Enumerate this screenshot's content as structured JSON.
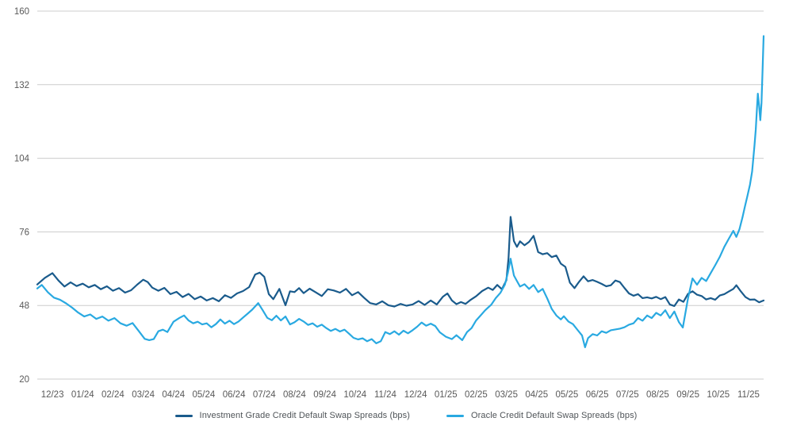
{
  "chart_data": {
    "type": "line",
    "title": "",
    "xlabel": "",
    "ylabel": "",
    "ylim": [
      20,
      160
    ],
    "grid": "horizontal",
    "legend_position": "bottom-center",
    "colors": {
      "grid": "#cccccc",
      "tick_text": "#595959",
      "ig_line": "#1a5b8c",
      "oracle_line": "#29a9e1"
    },
    "y_ticks": [
      160,
      132,
      104,
      76,
      48,
      20
    ],
    "x_tick_labels": [
      "12/23",
      "01/24",
      "02/24",
      "03/24",
      "04/24",
      "05/24",
      "06/24",
      "07/24",
      "08/24",
      "09/24",
      "10/24",
      "11/24",
      "12/24",
      "01/25",
      "02/25",
      "03/25",
      "04/25",
      "05/25",
      "06/25",
      "07/25",
      "08/25",
      "09/25",
      "10/25",
      "11/25"
    ],
    "x_unit": "month_index_from_dec_2023",
    "series": [
      {
        "name": "Investment Grade Credit Default Swap Spreads (bps)",
        "color": "#1a5b8c",
        "points": [
          [
            0,
            56
          ],
          [
            0.25,
            58.5
          ],
          [
            0.5,
            60.3
          ],
          [
            0.7,
            57.5
          ],
          [
            0.9,
            55.2
          ],
          [
            1.1,
            56.8
          ],
          [
            1.3,
            55.4
          ],
          [
            1.5,
            56.3
          ],
          [
            1.7,
            54.9
          ],
          [
            1.9,
            55.8
          ],
          [
            2.1,
            54.2
          ],
          [
            2.3,
            55.3
          ],
          [
            2.5,
            53.6
          ],
          [
            2.7,
            54.6
          ],
          [
            2.9,
            52.9
          ],
          [
            3.1,
            53.8
          ],
          [
            3.3,
            55.9
          ],
          [
            3.5,
            57.8
          ],
          [
            3.65,
            56.9
          ],
          [
            3.8,
            54.8
          ],
          [
            4.0,
            53.6
          ],
          [
            4.2,
            54.7
          ],
          [
            4.4,
            52.3
          ],
          [
            4.6,
            53.2
          ],
          [
            4.8,
            51.2
          ],
          [
            5.0,
            52.4
          ],
          [
            5.2,
            50.4
          ],
          [
            5.4,
            51.4
          ],
          [
            5.6,
            49.9
          ],
          [
            5.8,
            50.8
          ],
          [
            6.0,
            49.6
          ],
          [
            6.2,
            51.9
          ],
          [
            6.4,
            50.9
          ],
          [
            6.6,
            52.6
          ],
          [
            6.8,
            53.5
          ],
          [
            7.0,
            55
          ],
          [
            7.2,
            59.8
          ],
          [
            7.35,
            60.5
          ],
          [
            7.5,
            58.9
          ],
          [
            7.65,
            52.3
          ],
          [
            7.8,
            50.4
          ],
          [
            8.0,
            54.3
          ],
          [
            8.2,
            48.1
          ],
          [
            8.35,
            53.4
          ],
          [
            8.5,
            53.1
          ],
          [
            8.65,
            54.6
          ],
          [
            8.8,
            52.7
          ],
          [
            9.0,
            54.4
          ],
          [
            9.2,
            53
          ],
          [
            9.4,
            51.6
          ],
          [
            9.6,
            54.2
          ],
          [
            9.8,
            53.7
          ],
          [
            10.0,
            52.9
          ],
          [
            10.2,
            54.3
          ],
          [
            10.4,
            51.9
          ],
          [
            10.6,
            53.1
          ],
          [
            10.8,
            50.9
          ],
          [
            11.0,
            48.9
          ],
          [
            11.2,
            48.4
          ],
          [
            11.4,
            49.6
          ],
          [
            11.6,
            48.1
          ],
          [
            11.8,
            47.6
          ],
          [
            12.0,
            48.6
          ],
          [
            12.2,
            47.9
          ],
          [
            12.4,
            48.4
          ],
          [
            12.6,
            49.7
          ],
          [
            12.8,
            48.2
          ],
          [
            13.0,
            49.9
          ],
          [
            13.2,
            48.4
          ],
          [
            13.4,
            51.3
          ],
          [
            13.55,
            52.6
          ],
          [
            13.7,
            49.9
          ],
          [
            13.85,
            48.5
          ],
          [
            14.0,
            49.3
          ],
          [
            14.15,
            48.6
          ],
          [
            14.3,
            50
          ],
          [
            14.5,
            51.5
          ],
          [
            14.7,
            53.5
          ],
          [
            14.9,
            54.8
          ],
          [
            15.05,
            53.9
          ],
          [
            15.2,
            55.8
          ],
          [
            15.35,
            54.2
          ],
          [
            15.5,
            57.6
          ],
          [
            15.57,
            66
          ],
          [
            15.64,
            81.7
          ],
          [
            15.75,
            72.5
          ],
          [
            15.85,
            70.3
          ],
          [
            15.95,
            72.4
          ],
          [
            16.1,
            70.9
          ],
          [
            16.25,
            72.2
          ],
          [
            16.4,
            74.5
          ],
          [
            16.55,
            68.3
          ],
          [
            16.7,
            67.5
          ],
          [
            16.85,
            67.9
          ],
          [
            17.0,
            66.4
          ],
          [
            17.15,
            67
          ],
          [
            17.3,
            63.9
          ],
          [
            17.45,
            62.7
          ],
          [
            17.6,
            56.7
          ],
          [
            17.75,
            54.6
          ],
          [
            17.9,
            57
          ],
          [
            18.05,
            59.1
          ],
          [
            18.2,
            57.2
          ],
          [
            18.35,
            57.7
          ],
          [
            18.5,
            57
          ],
          [
            18.65,
            56.2
          ],
          [
            18.8,
            55.3
          ],
          [
            18.95,
            55.7
          ],
          [
            19.1,
            57.5
          ],
          [
            19.25,
            56.9
          ],
          [
            19.4,
            54.7
          ],
          [
            19.55,
            52.6
          ],
          [
            19.7,
            51.7
          ],
          [
            19.85,
            52.3
          ],
          [
            20.0,
            50.8
          ],
          [
            20.15,
            51.1
          ],
          [
            20.3,
            50.7
          ],
          [
            20.45,
            51.3
          ],
          [
            20.6,
            50.4
          ],
          [
            20.75,
            51.2
          ],
          [
            20.9,
            48.4
          ],
          [
            21.05,
            47.8
          ],
          [
            21.2,
            50.3
          ],
          [
            21.35,
            49.4
          ],
          [
            21.5,
            52.4
          ],
          [
            21.65,
            53.4
          ],
          [
            21.8,
            52.1
          ],
          [
            21.95,
            51.6
          ],
          [
            22.1,
            50.3
          ],
          [
            22.25,
            50.8
          ],
          [
            22.4,
            50.2
          ],
          [
            22.55,
            51.8
          ],
          [
            22.7,
            52.3
          ],
          [
            22.85,
            53.3
          ],
          [
            23.0,
            54.3
          ],
          [
            23.1,
            55.7
          ],
          [
            23.25,
            53.3
          ],
          [
            23.4,
            51.2
          ],
          [
            23.55,
            50.2
          ],
          [
            23.7,
            50.3
          ],
          [
            23.85,
            49.2
          ],
          [
            24,
            49.9
          ]
        ]
      },
      {
        "name": "Oracle Credit Default Swap Spreads (bps)",
        "color": "#29a9e1",
        "points": [
          [
            0,
            54.5
          ],
          [
            0.15,
            55.8
          ],
          [
            0.35,
            53
          ],
          [
            0.55,
            51
          ],
          [
            0.75,
            50.2
          ],
          [
            0.95,
            48.8
          ],
          [
            1.15,
            47.2
          ],
          [
            1.35,
            45.3
          ],
          [
            1.55,
            43.8
          ],
          [
            1.75,
            44.6
          ],
          [
            1.95,
            42.9
          ],
          [
            2.15,
            43.8
          ],
          [
            2.35,
            42.2
          ],
          [
            2.55,
            43.2
          ],
          [
            2.75,
            41.2
          ],
          [
            2.95,
            40.3
          ],
          [
            3.15,
            41.3
          ],
          [
            3.35,
            38.3
          ],
          [
            3.55,
            35.3
          ],
          [
            3.7,
            34.8
          ],
          [
            3.85,
            35.2
          ],
          [
            4.0,
            38.2
          ],
          [
            4.15,
            38.8
          ],
          [
            4.3,
            37.9
          ],
          [
            4.5,
            41.8
          ],
          [
            4.7,
            43.3
          ],
          [
            4.85,
            44.2
          ],
          [
            5.0,
            42.3
          ],
          [
            5.15,
            41.2
          ],
          [
            5.3,
            41.8
          ],
          [
            5.45,
            40.8
          ],
          [
            5.6,
            41.2
          ],
          [
            5.75,
            39.7
          ],
          [
            5.9,
            40.9
          ],
          [
            6.05,
            42.7
          ],
          [
            6.2,
            41.1
          ],
          [
            6.35,
            42.2
          ],
          [
            6.5,
            40.9
          ],
          [
            6.65,
            41.9
          ],
          [
            6.8,
            43.4
          ],
          [
            6.95,
            44.9
          ],
          [
            7.1,
            46.4
          ],
          [
            7.3,
            48.9
          ],
          [
            7.45,
            46.2
          ],
          [
            7.6,
            43.3
          ],
          [
            7.75,
            42.4
          ],
          [
            7.9,
            44.1
          ],
          [
            8.05,
            42.3
          ],
          [
            8.2,
            43.8
          ],
          [
            8.35,
            40.8
          ],
          [
            8.5,
            41.6
          ],
          [
            8.65,
            42.9
          ],
          [
            8.8,
            41.9
          ],
          [
            8.95,
            40.6
          ],
          [
            9.1,
            41.2
          ],
          [
            9.25,
            39.9
          ],
          [
            9.4,
            40.7
          ],
          [
            9.55,
            39.4
          ],
          [
            9.7,
            38.3
          ],
          [
            9.85,
            39.1
          ],
          [
            10.0,
            38.1
          ],
          [
            10.15,
            38.8
          ],
          [
            10.3,
            37.3
          ],
          [
            10.45,
            35.7
          ],
          [
            10.6,
            35.1
          ],
          [
            10.75,
            35.5
          ],
          [
            10.9,
            34.4
          ],
          [
            11.05,
            35.2
          ],
          [
            11.2,
            33.6
          ],
          [
            11.35,
            34.4
          ],
          [
            11.5,
            37.9
          ],
          [
            11.65,
            37.1
          ],
          [
            11.8,
            38.2
          ],
          [
            11.95,
            36.9
          ],
          [
            12.1,
            38.4
          ],
          [
            12.25,
            37.4
          ],
          [
            12.4,
            38.6
          ],
          [
            12.55,
            39.9
          ],
          [
            12.7,
            41.5
          ],
          [
            12.85,
            40.3
          ],
          [
            13.0,
            41.1
          ],
          [
            13.15,
            40.2
          ],
          [
            13.3,
            37.8
          ],
          [
            13.5,
            36.1
          ],
          [
            13.7,
            35.2
          ],
          [
            13.85,
            36.7
          ],
          [
            14.04,
            34.8
          ],
          [
            14.2,
            37.9
          ],
          [
            14.35,
            39.4
          ],
          [
            14.5,
            42.3
          ],
          [
            14.65,
            44.2
          ],
          [
            14.8,
            46.2
          ],
          [
            15.0,
            48.3
          ],
          [
            15.15,
            50.8
          ],
          [
            15.3,
            52.8
          ],
          [
            15.45,
            55.9
          ],
          [
            15.55,
            60.5
          ],
          [
            15.64,
            65.8
          ],
          [
            15.75,
            59.4
          ],
          [
            15.85,
            57.3
          ],
          [
            15.95,
            55.2
          ],
          [
            16.1,
            56.1
          ],
          [
            16.25,
            54.3
          ],
          [
            16.4,
            55.8
          ],
          [
            16.55,
            53.1
          ],
          [
            16.7,
            54.3
          ],
          [
            16.85,
            50.7
          ],
          [
            17.0,
            46.7
          ],
          [
            17.15,
            44.2
          ],
          [
            17.3,
            42.7
          ],
          [
            17.4,
            43.9
          ],
          [
            17.55,
            41.9
          ],
          [
            17.7,
            40.9
          ],
          [
            17.85,
            38.7
          ],
          [
            18.0,
            36.6
          ],
          [
            18.1,
            32.1
          ],
          [
            18.2,
            35.6
          ],
          [
            18.35,
            37.1
          ],
          [
            18.5,
            36.6
          ],
          [
            18.65,
            38.2
          ],
          [
            18.8,
            37.6
          ],
          [
            18.95,
            38.6
          ],
          [
            19.1,
            38.9
          ],
          [
            19.25,
            39.2
          ],
          [
            19.4,
            39.7
          ],
          [
            19.55,
            40.7
          ],
          [
            19.7,
            41.2
          ],
          [
            19.85,
            43.2
          ],
          [
            20.0,
            42.2
          ],
          [
            20.15,
            44.2
          ],
          [
            20.3,
            43.2
          ],
          [
            20.45,
            45.2
          ],
          [
            20.6,
            44.2
          ],
          [
            20.75,
            46.2
          ],
          [
            20.9,
            43.2
          ],
          [
            21.05,
            45.7
          ],
          [
            21.2,
            41.7
          ],
          [
            21.33,
            39.6
          ],
          [
            21.5,
            50.7
          ],
          [
            21.65,
            58.3
          ],
          [
            21.8,
            55.9
          ],
          [
            21.95,
            58.5
          ],
          [
            22.1,
            57.3
          ],
          [
            22.25,
            60.3
          ],
          [
            22.4,
            63.3
          ],
          [
            22.55,
            66.5
          ],
          [
            22.7,
            70.3
          ],
          [
            22.85,
            73.4
          ],
          [
            23.0,
            76.4
          ],
          [
            23.1,
            74.1
          ],
          [
            23.2,
            77
          ],
          [
            23.3,
            81.5
          ],
          [
            23.38,
            85.5
          ],
          [
            23.46,
            89.5
          ],
          [
            23.55,
            94
          ],
          [
            23.62,
            99
          ],
          [
            23.66,
            104
          ],
          [
            23.7,
            109
          ],
          [
            23.74,
            115
          ],
          [
            23.78,
            123
          ],
          [
            23.81,
            128.6
          ],
          [
            23.85,
            124
          ],
          [
            23.89,
            118.5
          ],
          [
            23.93,
            125
          ],
          [
            23.96,
            136
          ],
          [
            24,
            150.5
          ]
        ]
      }
    ]
  },
  "legend": {
    "items": [
      {
        "label": "Investment Grade Credit Default Swap Spreads (bps)"
      },
      {
        "label": "Oracle Credit Default Swap Spreads (bps)"
      }
    ]
  }
}
